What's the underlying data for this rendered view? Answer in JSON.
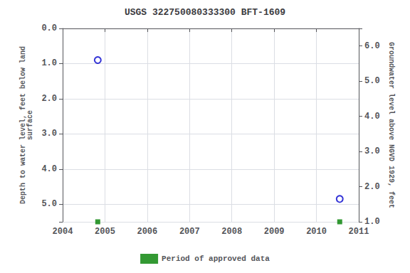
{
  "chart_data": {
    "type": "scatter",
    "title": "USGS 322750080333300 BFT-1609",
    "ylabel": "Depth to water level, feet below land\nsurface",
    "y2label": "Groundwater level above NGVD 1929, feet",
    "x": [
      2004.83,
      2010.55
    ],
    "series": [
      {
        "color": "#0000cc",
        "marker": "open circle",
        "values": [
          0.9,
          4.85
        ]
      },
      {
        "name": "Period of approved data",
        "color": "#008000",
        "marker": "square",
        "values": [
          5.5,
          5.5
        ]
      }
    ],
    "xlim": [
      2004,
      2011
    ],
    "xticks": [
      2004,
      2005,
      2006,
      2007,
      2008,
      2009,
      2010,
      2011
    ],
    "ylim": [
      5.5,
      0.0
    ],
    "yticks": [
      {
        "value": 0.0,
        "label": "0.0"
      },
      {
        "value": 1.0,
        "label": "1.0"
      },
      {
        "value": 2.0,
        "label": "2.0"
      },
      {
        "value": 3.0,
        "label": "3.0"
      },
      {
        "value": 4.0,
        "label": "4.0"
      },
      {
        "value": 5.0,
        "label": "5.0"
      }
    ],
    "y2lim": [
      1.0,
      6.5
    ],
    "y2ticks": [
      {
        "value": 1.0,
        "label": "1.0"
      },
      {
        "value": 2.0,
        "label": "2.0"
      },
      {
        "value": 3.0,
        "label": "3.0"
      },
      {
        "value": 4.0,
        "label": "4.0"
      },
      {
        "value": 5.0,
        "label": "5.0"
      },
      {
        "value": 6.0,
        "label": "6.0"
      }
    ],
    "grid": true,
    "legend": "bottom"
  }
}
